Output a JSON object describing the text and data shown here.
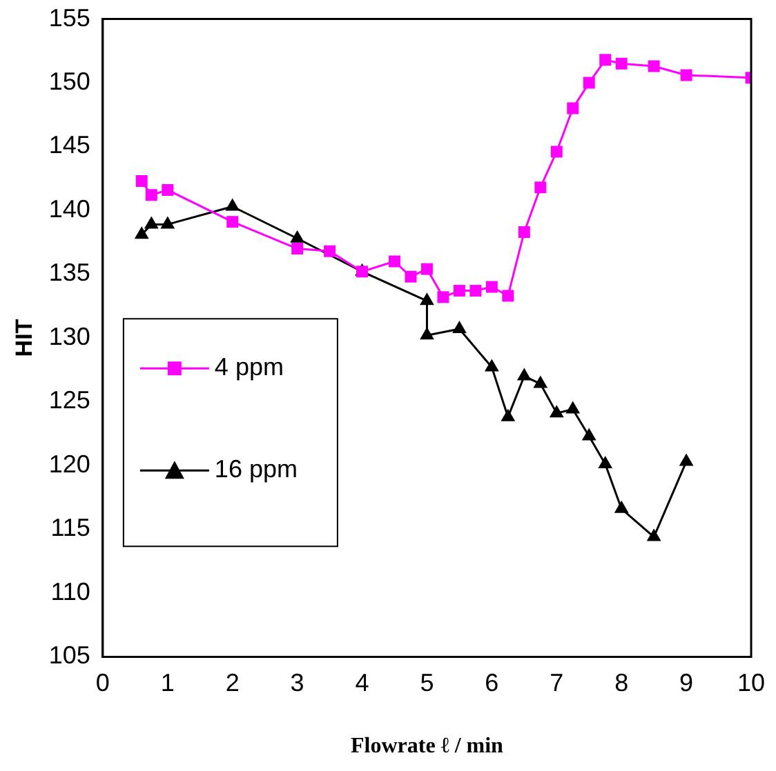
{
  "chart_data": {
    "type": "line",
    "xlabel": "Flowrate ℓ / min",
    "ylabel": "HIT",
    "xlim": [
      0,
      10
    ],
    "xticks": [
      0,
      1,
      2,
      3,
      4,
      5,
      6,
      7,
      8,
      9,
      10
    ],
    "ylim": [
      105,
      155
    ],
    "yticks": [
      105,
      110,
      115,
      120,
      125,
      130,
      135,
      140,
      145,
      150,
      155
    ],
    "grid": false,
    "legend": "left",
    "series": [
      {
        "name": "4 ppm",
        "color": "#ff00ff",
        "marker": "square",
        "x": [
          0.6,
          0.75,
          1,
          2,
          3,
          3.5,
          4,
          4.5,
          4.75,
          5,
          5.25,
          5.5,
          5.75,
          6,
          6.25,
          6.5,
          6.75,
          7,
          7.25,
          7.5,
          7.75,
          8,
          8.5,
          9,
          10
        ],
        "values": [
          142.3,
          141.2,
          141.6,
          139.1,
          137,
          136.8,
          135.2,
          136,
          134.8,
          135.4,
          133.2,
          133.7,
          133.7,
          134,
          133.3,
          138.3,
          141.8,
          144.6,
          148,
          150,
          151.8,
          151.5,
          151.3,
          150.6,
          150.4
        ]
      },
      {
        "name": "16 ppm",
        "color": "#000000",
        "marker": "triangle",
        "x": [
          0.6,
          0.75,
          1,
          2,
          3,
          4,
          5,
          5,
          5.5,
          6,
          6.25,
          6.5,
          6.75,
          7,
          7.25,
          7.5,
          7.75,
          8,
          8.5,
          9
        ],
        "values": [
          138.1,
          138.9,
          138.9,
          140.3,
          137.8,
          135.2,
          132.9,
          130.2,
          130.7,
          127.7,
          123.8,
          127,
          126.4,
          124.1,
          124.4,
          122.3,
          120.1,
          116.6,
          114.4,
          120.3
        ]
      }
    ]
  }
}
